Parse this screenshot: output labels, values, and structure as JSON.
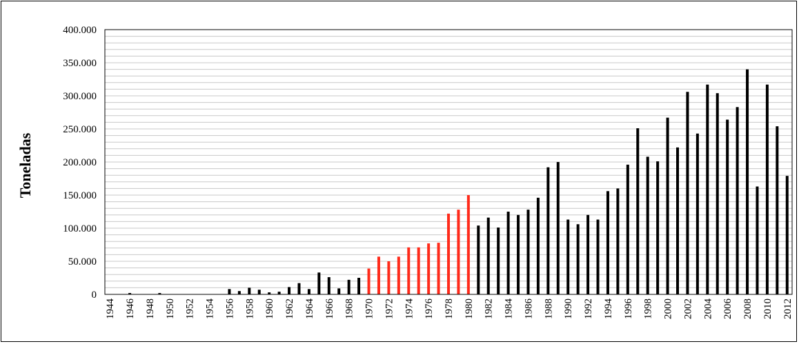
{
  "chart_data": {
    "type": "bar",
    "title": "",
    "xlabel": "",
    "ylabel": "Toneladas",
    "ylim": [
      0,
      400000
    ],
    "yticks": [
      0,
      50000,
      100000,
      150000,
      200000,
      250000,
      300000,
      350000,
      400000
    ],
    "ytick_labels": [
      "0",
      "50.000",
      "100.000",
      "150.000",
      "200.000",
      "250.000",
      "300.000",
      "350.000",
      "400.000"
    ],
    "minor_grid_step": 10000,
    "grid": true,
    "legend": "none",
    "colors": {
      "default": "#000000",
      "highlight": "#ff2a1a",
      "grid": "#c8c8c8"
    },
    "highlight_range": [
      1970,
      1980
    ],
    "x_label_every": 2,
    "x": [
      1944,
      1945,
      1946,
      1947,
      1948,
      1949,
      1950,
      1951,
      1952,
      1953,
      1954,
      1955,
      1956,
      1957,
      1958,
      1959,
      1960,
      1961,
      1962,
      1963,
      1964,
      1965,
      1966,
      1967,
      1968,
      1969,
      1970,
      1971,
      1972,
      1973,
      1974,
      1975,
      1976,
      1977,
      1978,
      1979,
      1980,
      1981,
      1982,
      1983,
      1984,
      1985,
      1986,
      1987,
      1988,
      1989,
      1990,
      1991,
      1992,
      1993,
      1994,
      1995,
      1996,
      1997,
      1998,
      1999,
      2000,
      2001,
      2002,
      2003,
      2004,
      2005,
      2006,
      2007,
      2008,
      2009,
      2010,
      2011,
      2012
    ],
    "values": [
      0,
      0,
      2000,
      0,
      0,
      2000,
      0,
      0,
      0,
      0,
      0,
      0,
      8000,
      5000,
      10000,
      7000,
      3000,
      4000,
      11000,
      17000,
      8000,
      33000,
      26000,
      9000,
      22000,
      25000,
      39000,
      57000,
      50000,
      57000,
      71000,
      71000,
      77000,
      78000,
      122000,
      128000,
      150000,
      104000,
      116000,
      101000,
      125000,
      120000,
      128000,
      146000,
      192000,
      200000,
      113000,
      106000,
      120000,
      113000,
      156000,
      160000,
      196000,
      251000,
      208000,
      201000,
      267000,
      222000,
      306000,
      243000,
      317000,
      304000,
      264000,
      283000,
      340000,
      163000,
      317000,
      254000,
      179000
    ]
  }
}
